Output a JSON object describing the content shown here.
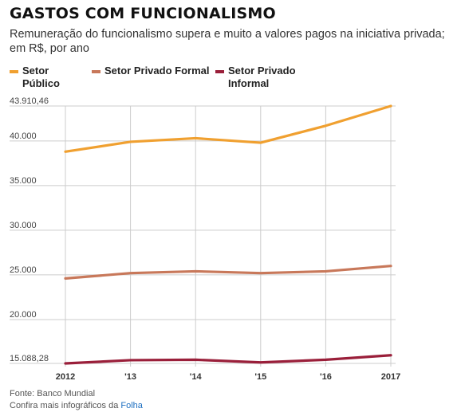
{
  "header": {
    "title": "GASTOS COM FUNCIONALISMO",
    "subtitle": "Remuneração do funcionalismo supera e muito a valores pagos na iniciativa privada; em R$, por ano"
  },
  "footer": {
    "source": "Fonte: Banco Mundial",
    "more_prefix": "Confira mais infográficos da ",
    "more_brand": "Folha"
  },
  "colors": {
    "setor_publico": "#f0a030",
    "privado_formal": "#c8785a",
    "privado_informal": "#9a1f3a",
    "grid": "#cccccc"
  },
  "chart_data": {
    "type": "line",
    "title": "GASTOS COM FUNCIONALISMO",
    "subtitle": "Remuneração do funcionalismo supera e muito a valores pagos na iniciativa privada; em R$, por ano",
    "x": [
      "2012",
      "'13",
      "'14",
      "'15",
      "'16",
      "2017"
    ],
    "ylim": [
      15088.28,
      43910.46
    ],
    "yticks": [
      15088.28,
      20000,
      25000,
      30000,
      35000,
      40000,
      43910.46
    ],
    "ytick_labels": [
      "15.088,28",
      "20.000",
      "25.000",
      "30.000",
      "35.000",
      "40.000",
      "43.910,46"
    ],
    "grid": true,
    "legend_position": "top-left",
    "series": [
      {
        "name": "Setor Público",
        "values": [
          38800,
          39900,
          40300,
          39800,
          41700,
          43910.46
        ]
      },
      {
        "name": "Setor Privado Formal",
        "values": [
          24600,
          25200,
          25400,
          25200,
          25400,
          26000
        ]
      },
      {
        "name": "Setor Privado Informal",
        "values": [
          15088.28,
          15450,
          15500,
          15200,
          15500,
          16000
        ]
      }
    ]
  }
}
